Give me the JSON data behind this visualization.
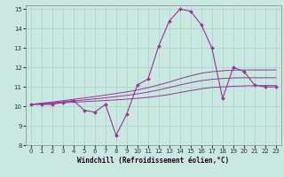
{
  "xlabel": "Windchill (Refroidissement éolien,°C)",
  "xlim": [
    -0.5,
    23.5
  ],
  "ylim": [
    8,
    15.2
  ],
  "yticks": [
    8,
    9,
    10,
    11,
    12,
    13,
    14,
    15
  ],
  "xticks": [
    0,
    1,
    2,
    3,
    4,
    5,
    6,
    7,
    8,
    9,
    10,
    11,
    12,
    13,
    14,
    15,
    16,
    17,
    18,
    19,
    20,
    21,
    22,
    23
  ],
  "bg_color": "#c8e8e0",
  "grid_color": "#b0d4cc",
  "line_color": "#993399",
  "zigzag": [
    10.1,
    10.1,
    10.1,
    10.2,
    10.3,
    9.8,
    9.7,
    10.1,
    8.5,
    9.6,
    11.1,
    11.4,
    13.1,
    14.4,
    15.0,
    14.9,
    14.2,
    13.0,
    10.4,
    12.0,
    11.8,
    11.1,
    11.0,
    11.0
  ],
  "trend1": [
    10.1,
    10.12,
    10.15,
    10.18,
    10.21,
    10.24,
    10.27,
    10.3,
    10.33,
    10.37,
    10.41,
    10.46,
    10.53,
    10.61,
    10.71,
    10.81,
    10.9,
    10.97,
    11.0,
    11.03,
    11.05,
    11.06,
    11.07,
    11.07
  ],
  "trend2": [
    10.1,
    10.14,
    10.18,
    10.23,
    10.28,
    10.33,
    10.38,
    10.44,
    10.5,
    10.56,
    10.64,
    10.73,
    10.84,
    10.97,
    11.1,
    11.22,
    11.32,
    11.39,
    11.43,
    11.46,
    11.47,
    11.47,
    11.47,
    11.47
  ],
  "trend3": [
    10.1,
    10.16,
    10.22,
    10.29,
    10.36,
    10.43,
    10.5,
    10.58,
    10.66,
    10.74,
    10.84,
    10.96,
    11.1,
    11.25,
    11.42,
    11.57,
    11.7,
    11.78,
    11.83,
    11.86,
    11.87,
    11.87,
    11.87,
    11.87
  ]
}
